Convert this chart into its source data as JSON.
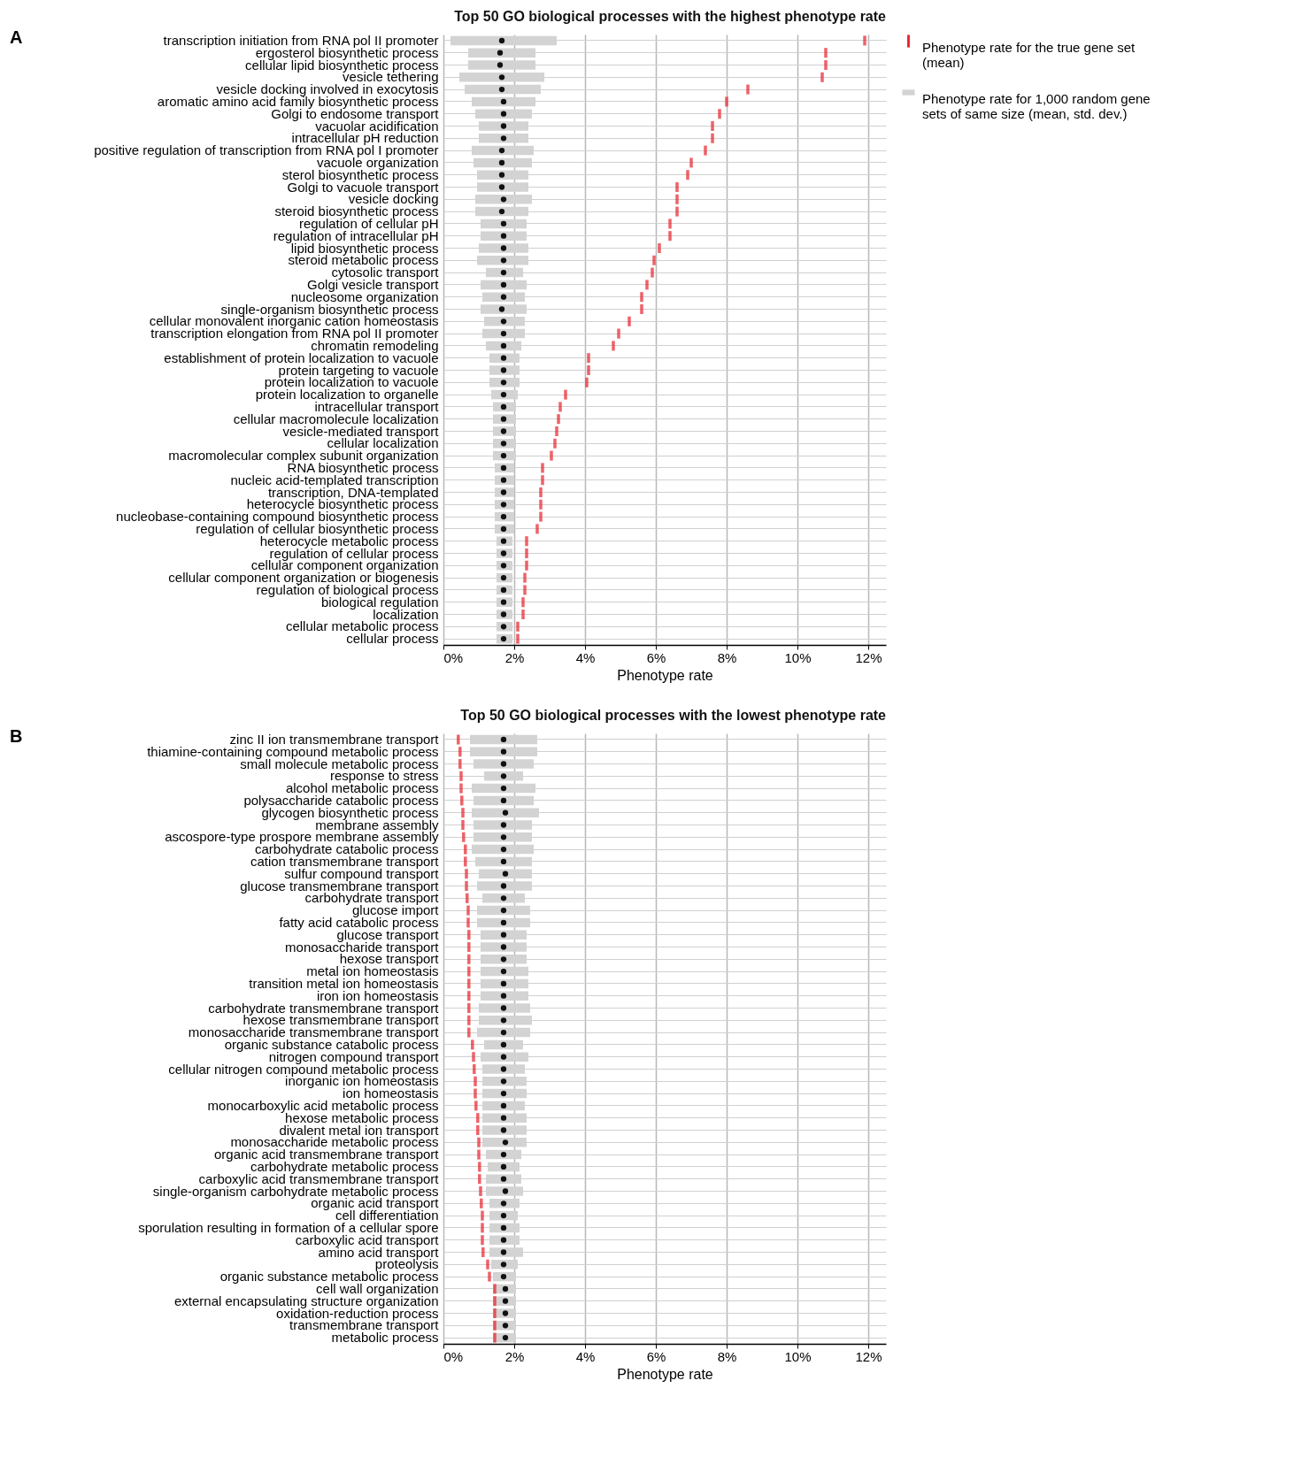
{
  "chart_data": [
    {
      "type": "bar",
      "orientation": "horizontal",
      "title": "Top 50 GO biological processes with the highest phenotype rate",
      "xlabel": "Phenotype rate",
      "annotations": [
        "A"
      ],
      "legend": "right",
      "grid": true,
      "xlim": [
        0,
        12.5
      ],
      "xticks": [
        {
          "value": 0,
          "label": "0%"
        },
        {
          "value": 2,
          "label": "2%"
        },
        {
          "value": 4,
          "label": "4%"
        },
        {
          "value": 6,
          "label": "6%"
        },
        {
          "value": 8,
          "label": "8%"
        },
        {
          "value": 10,
          "label": "10%"
        },
        {
          "value": 12,
          "label": "12%"
        }
      ],
      "categories": [
        "transcription initiation from RNA pol II promoter",
        "ergosterol biosynthetic process",
        "cellular lipid biosynthetic process",
        "vesicle tethering",
        "vesicle docking involved in exocytosis",
        "aromatic amino acid family biosynthetic process",
        "Golgi to endosome transport",
        "vacuolar acidification",
        "intracellular pH reduction",
        "positive regulation of transcription from RNA pol I promoter",
        "vacuole organization",
        "sterol biosynthetic process",
        "Golgi to vacuole transport",
        "vesicle docking",
        "steroid biosynthetic process",
        "regulation of cellular pH",
        "regulation of intracellular pH",
        "lipid biosynthetic process",
        "steroid metabolic process",
        "cytosolic transport",
        "Golgi vesicle transport",
        "nucleosome organization",
        "single-organism biosynthetic process",
        "cellular monovalent inorganic cation homeostasis",
        "transcription elongation from RNA pol II promoter",
        "chromatin remodeling",
        "establishment of protein localization to vacuole",
        "protein targeting to vacuole",
        "protein localization to vacuole",
        "protein localization to organelle",
        "intracellular transport",
        "cellular macromolecule localization",
        "vesicle-mediated transport",
        "cellular localization",
        "macromolecular complex subunit organization",
        "RNA biosynthetic process",
        "nucleic acid-templated transcription",
        "transcription, DNA-templated",
        "heterocycle biosynthetic process",
        "nucleobase-containing compound biosynthetic process",
        "regulation of cellular biosynthetic process",
        "heterocycle metabolic process",
        "regulation of cellular process",
        "cellular component organization",
        "cellular component organization or biogenesis",
        "regulation of biological process",
        "biological regulation",
        "localization",
        "cellular metabolic process",
        "cellular process"
      ],
      "series": [
        {
          "name": "Phenotype rate for the true gene set (mean)",
          "type": "scatter",
          "color": "#e8202a",
          "values": [
            11.9,
            10.8,
            10.8,
            10.7,
            8.6,
            8.0,
            7.8,
            7.6,
            7.6,
            7.4,
            7.0,
            6.9,
            6.6,
            6.6,
            6.6,
            6.4,
            6.4,
            6.1,
            5.95,
            5.9,
            5.75,
            5.6,
            5.6,
            5.25,
            4.95,
            4.8,
            4.1,
            4.1,
            4.05,
            3.45,
            3.3,
            3.25,
            3.2,
            3.15,
            3.05,
            2.8,
            2.8,
            2.75,
            2.75,
            2.75,
            2.65,
            2.35,
            2.35,
            2.35,
            2.3,
            2.3,
            2.25,
            2.25,
            2.1,
            2.1
          ]
        },
        {
          "name": "Phenotype rate for 1,000 random gene sets of same size (mean, std. dev.)",
          "type": "bar",
          "color": "#d3d3d3",
          "base": [
            0.2,
            0.7,
            0.7,
            0.45,
            0.6,
            0.8,
            0.9,
            1.0,
            1.0,
            0.8,
            0.85,
            0.95,
            0.95,
            0.9,
            0.9,
            1.05,
            1.05,
            1.0,
            0.95,
            1.2,
            1.05,
            1.1,
            1.05,
            1.15,
            1.1,
            1.2,
            1.3,
            1.3,
            1.3,
            1.35,
            1.4,
            1.4,
            1.4,
            1.4,
            1.4,
            1.45,
            1.45,
            1.45,
            1.45,
            1.45,
            1.45,
            1.5,
            1.5,
            1.5,
            1.5,
            1.5,
            1.5,
            1.5,
            1.5,
            1.5
          ],
          "values": [
            3.0,
            1.9,
            1.9,
            2.4,
            2.15,
            1.8,
            1.6,
            1.4,
            1.4,
            1.75,
            1.65,
            1.45,
            1.45,
            1.6,
            1.5,
            1.3,
            1.3,
            1.4,
            1.45,
            1.05,
            1.3,
            1.2,
            1.3,
            1.15,
            1.2,
            1.0,
            0.85,
            0.85,
            0.85,
            0.75,
            0.65,
            0.65,
            0.65,
            0.65,
            0.65,
            0.55,
            0.55,
            0.55,
            0.55,
            0.55,
            0.55,
            0.45,
            0.45,
            0.45,
            0.45,
            0.45,
            0.45,
            0.45,
            0.45,
            0.45
          ]
        },
        {
          "type": "scatter",
          "marker": "circle",
          "color": "#111111",
          "values": [
            1.65,
            1.6,
            1.6,
            1.65,
            1.65,
            1.7,
            1.7,
            1.7,
            1.7,
            1.65,
            1.65,
            1.65,
            1.65,
            1.7,
            1.65,
            1.7,
            1.7,
            1.7,
            1.7,
            1.7,
            1.7,
            1.7,
            1.65,
            1.7,
            1.7,
            1.7,
            1.7,
            1.7,
            1.7,
            1.7,
            1.7,
            1.7,
            1.7,
            1.7,
            1.7,
            1.7,
            1.7,
            1.7,
            1.7,
            1.7,
            1.7,
            1.7,
            1.7,
            1.7,
            1.7,
            1.7,
            1.7,
            1.7,
            1.7,
            1.7
          ]
        }
      ]
    },
    {
      "type": "bar",
      "orientation": "horizontal",
      "title": "Top 50 GO biological processes with the lowest phenotype rate",
      "xlabel": "Phenotype rate",
      "annotations": [
        "B"
      ],
      "legend": "right",
      "grid": true,
      "xlim": [
        0,
        12.5
      ],
      "xticks": [
        {
          "value": 0,
          "label": "0%"
        },
        {
          "value": 2,
          "label": "2%"
        },
        {
          "value": 4,
          "label": "4%"
        },
        {
          "value": 6,
          "label": "6%"
        },
        {
          "value": 8,
          "label": "8%"
        },
        {
          "value": 10,
          "label": "10%"
        },
        {
          "value": 12,
          "label": "12%"
        }
      ],
      "categories": [
        "zinc II ion transmembrane transport",
        "thiamine-containing compound metabolic process",
        "small molecule metabolic process",
        "response to stress",
        "alcohol metabolic process",
        "polysaccharide catabolic process",
        "glycogen biosynthetic process",
        "membrane assembly",
        "ascospore-type prospore membrane assembly",
        "carbohydrate catabolic process",
        "cation transmembrane transport",
        "sulfur compound transport",
        "glucose transmembrane transport",
        "carbohydrate transport",
        "glucose import",
        "fatty acid catabolic process",
        "glucose transport",
        "monosaccharide transport",
        "hexose transport",
        "metal ion homeostasis",
        "transition metal ion homeostasis",
        "iron ion homeostasis",
        "carbohydrate transmembrane transport",
        "hexose transmembrane transport",
        "monosaccharide transmembrane transport",
        "organic substance catabolic process",
        "nitrogen compound transport",
        "cellular nitrogen compound metabolic process",
        "inorganic ion homeostasis",
        "ion homeostasis",
        "monocarboxylic acid metabolic process",
        "hexose metabolic process",
        "divalent metal ion transport",
        "monosaccharide metabolic process",
        "organic acid transmembrane transport",
        "carbohydrate metabolic process",
        "carboxylic acid transmembrane transport",
        "single-organism carbohydrate metabolic process",
        "organic acid transport",
        "cell differentiation",
        "sporulation resulting in formation of a cellular spore",
        "carboxylic acid transport",
        "amino acid transport",
        "proteolysis",
        "organic substance metabolic process",
        "cell wall organization",
        "external encapsulating structure organization",
        "oxidation-reduction process",
        "transmembrane transport",
        "metabolic process"
      ],
      "series": [
        {
          "name": "Phenotype rate for the true gene set (mean)",
          "type": "scatter",
          "color": "#e8202a",
          "values": [
            0.42,
            0.47,
            0.47,
            0.5,
            0.5,
            0.52,
            0.55,
            0.55,
            0.57,
            0.62,
            0.62,
            0.65,
            0.65,
            0.67,
            0.7,
            0.7,
            0.72,
            0.72,
            0.72,
            0.72,
            0.72,
            0.72,
            0.72,
            0.72,
            0.72,
            0.82,
            0.85,
            0.87,
            0.9,
            0.9,
            0.92,
            0.97,
            0.97,
            1.0,
            1.0,
            1.02,
            1.02,
            1.05,
            1.07,
            1.1,
            1.1,
            1.1,
            1.12,
            1.25,
            1.3,
            1.45,
            1.45,
            1.45,
            1.45,
            1.45
          ]
        },
        {
          "name": "Phenotype rate for 1,000 random gene sets of same size (mean, std. dev.)",
          "type": "bar",
          "color": "#d3d3d3",
          "base": [
            0.75,
            0.75,
            0.85,
            1.15,
            0.8,
            0.85,
            0.8,
            0.85,
            0.85,
            0.8,
            0.9,
            1.0,
            0.95,
            1.1,
            0.95,
            0.95,
            1.05,
            1.05,
            1.05,
            1.05,
            1.05,
            1.05,
            1.0,
            1.0,
            0.95,
            1.15,
            1.05,
            1.1,
            1.1,
            1.1,
            1.1,
            1.1,
            1.1,
            1.1,
            1.2,
            1.25,
            1.2,
            1.2,
            1.3,
            1.3,
            1.3,
            1.3,
            1.3,
            1.35,
            1.4,
            1.4,
            1.4,
            1.4,
            1.4,
            1.4
          ],
          "values": [
            1.9,
            1.9,
            1.7,
            1.1,
            1.8,
            1.7,
            1.9,
            1.65,
            1.65,
            1.75,
            1.6,
            1.5,
            1.55,
            1.2,
            1.5,
            1.5,
            1.3,
            1.3,
            1.3,
            1.35,
            1.35,
            1.35,
            1.45,
            1.5,
            1.5,
            1.1,
            1.35,
            1.2,
            1.25,
            1.25,
            1.2,
            1.25,
            1.25,
            1.25,
            1.0,
            0.9,
            1.0,
            1.05,
            0.85,
            0.8,
            0.85,
            0.85,
            0.95,
            0.75,
            0.65,
            0.65,
            0.65,
            0.65,
            0.65,
            0.65
          ]
        },
        {
          "type": "scatter",
          "marker": "circle",
          "color": "#111111",
          "values": [
            1.7,
            1.7,
            1.7,
            1.7,
            1.7,
            1.7,
            1.75,
            1.7,
            1.7,
            1.7,
            1.7,
            1.75,
            1.7,
            1.7,
            1.7,
            1.7,
            1.7,
            1.7,
            1.7,
            1.7,
            1.7,
            1.7,
            1.7,
            1.7,
            1.7,
            1.7,
            1.7,
            1.7,
            1.7,
            1.7,
            1.7,
            1.7,
            1.7,
            1.75,
            1.7,
            1.7,
            1.7,
            1.75,
            1.7,
            1.7,
            1.7,
            1.7,
            1.7,
            1.7,
            1.7,
            1.75,
            1.75,
            1.75,
            1.75,
            1.75
          ]
        }
      ]
    }
  ]
}
